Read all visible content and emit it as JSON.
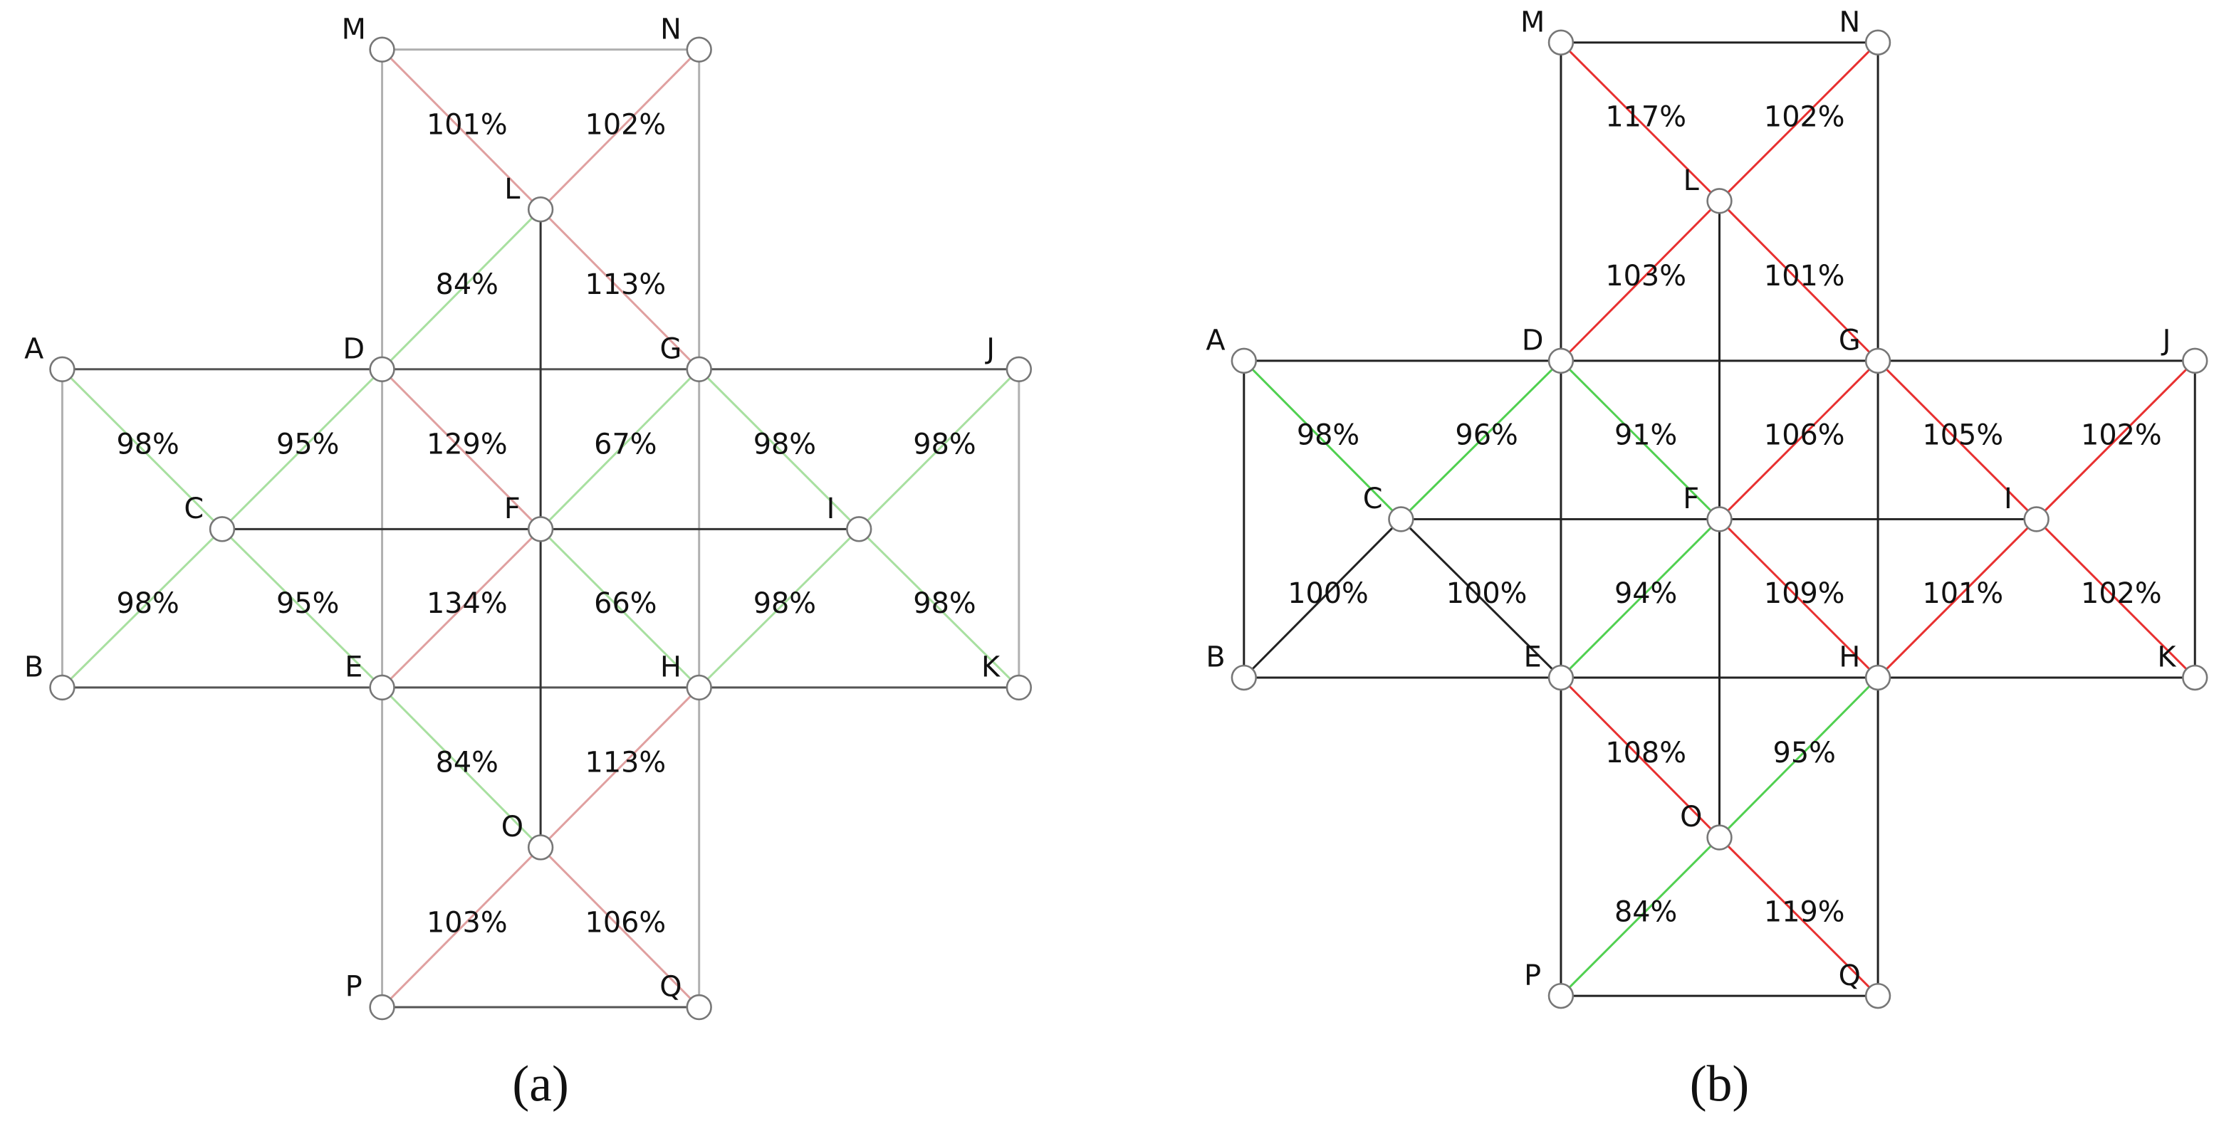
{
  "panels": [
    {
      "caption": "(a)",
      "nodes": [
        {
          "label": "M"
        },
        {
          "label": "N"
        },
        {
          "label": "L"
        },
        {
          "label": "A"
        },
        {
          "label": "D"
        },
        {
          "label": "G"
        },
        {
          "label": "J"
        },
        {
          "label": "C"
        },
        {
          "label": "F"
        },
        {
          "label": "I"
        },
        {
          "label": "B"
        },
        {
          "label": "E"
        },
        {
          "label": "H"
        },
        {
          "label": "K"
        },
        {
          "label": "O"
        },
        {
          "label": "P"
        },
        {
          "label": "Q"
        }
      ],
      "edges": [
        {
          "from": "M",
          "to": "N",
          "color": "#b0b0b0"
        },
        {
          "from": "M",
          "to": "P",
          "color": "#b0b0b0"
        },
        {
          "from": "N",
          "to": "Q",
          "color": "#b0b0b0"
        },
        {
          "from": "P",
          "to": "Q",
          "color": "#555555"
        },
        {
          "from": "A",
          "to": "J",
          "color": "#555555"
        },
        {
          "from": "B",
          "to": "K",
          "color": "#555555"
        },
        {
          "from": "A",
          "to": "B",
          "color": "#b0b0b0"
        },
        {
          "from": "J",
          "to": "K",
          "color": "#b0b0b0"
        },
        {
          "from": "C",
          "to": "I",
          "color": "#333333"
        },
        {
          "from": "L",
          "to": "O",
          "color": "#333333"
        },
        {
          "from": "M",
          "to": "L",
          "color": "#e0a0a0",
          "label": "101%"
        },
        {
          "from": "N",
          "to": "L",
          "color": "#e0a0a0",
          "label": "102%"
        },
        {
          "from": "L",
          "to": "D",
          "color": "#a8e0a0",
          "label": "84%"
        },
        {
          "from": "L",
          "to": "G",
          "color": "#e0a0a0",
          "label": "113%"
        },
        {
          "from": "A",
          "to": "C",
          "color": "#a8e0a0",
          "label": "98%"
        },
        {
          "from": "D",
          "to": "C",
          "color": "#a8e0a0",
          "label": "95%"
        },
        {
          "from": "D",
          "to": "F",
          "color": "#e0a0a0",
          "label": "129%"
        },
        {
          "from": "G",
          "to": "F",
          "color": "#a8e0a0",
          "label": "67%"
        },
        {
          "from": "G",
          "to": "I",
          "color": "#a8e0a0",
          "label": "98%"
        },
        {
          "from": "J",
          "to": "I",
          "color": "#a8e0a0",
          "label": "98%"
        },
        {
          "from": "C",
          "to": "B",
          "color": "#a8e0a0",
          "label": "98%"
        },
        {
          "from": "C",
          "to": "E",
          "color": "#a8e0a0",
          "label": "95%"
        },
        {
          "from": "F",
          "to": "E",
          "color": "#e0a0a0",
          "label": "134%"
        },
        {
          "from": "F",
          "to": "H",
          "color": "#a8e0a0",
          "label": "66%"
        },
        {
          "from": "I",
          "to": "H",
          "color": "#a8e0a0",
          "label": "98%"
        },
        {
          "from": "I",
          "to": "K",
          "color": "#a8e0a0",
          "label": "98%"
        },
        {
          "from": "E",
          "to": "O",
          "color": "#a8e0a0",
          "label": "84%"
        },
        {
          "from": "H",
          "to": "O",
          "color": "#e0a0a0",
          "label": "113%"
        },
        {
          "from": "O",
          "to": "P",
          "color": "#e0a0a0",
          "label": "103%"
        },
        {
          "from": "O",
          "to": "Q",
          "color": "#e0a0a0",
          "label": "106%"
        }
      ]
    },
    {
      "caption": "(b)",
      "nodes": [
        {
          "label": "M"
        },
        {
          "label": "N"
        },
        {
          "label": "L"
        },
        {
          "label": "A"
        },
        {
          "label": "D"
        },
        {
          "label": "G"
        },
        {
          "label": "J"
        },
        {
          "label": "C"
        },
        {
          "label": "F"
        },
        {
          "label": "I"
        },
        {
          "label": "B"
        },
        {
          "label": "E"
        },
        {
          "label": "H"
        },
        {
          "label": "K"
        },
        {
          "label": "O"
        },
        {
          "label": "P"
        },
        {
          "label": "Q"
        }
      ],
      "edges": [
        {
          "from": "M",
          "to": "N",
          "color": "#222222"
        },
        {
          "from": "M",
          "to": "P",
          "color": "#222222"
        },
        {
          "from": "N",
          "to": "Q",
          "color": "#222222"
        },
        {
          "from": "P",
          "to": "Q",
          "color": "#222222"
        },
        {
          "from": "A",
          "to": "J",
          "color": "#222222"
        },
        {
          "from": "B",
          "to": "K",
          "color": "#222222"
        },
        {
          "from": "A",
          "to": "B",
          "color": "#222222"
        },
        {
          "from": "J",
          "to": "K",
          "color": "#222222"
        },
        {
          "from": "C",
          "to": "I",
          "color": "#222222"
        },
        {
          "from": "L",
          "to": "O",
          "color": "#222222"
        },
        {
          "from": "M",
          "to": "L",
          "color": "#e83030",
          "label": "117%"
        },
        {
          "from": "N",
          "to": "L",
          "color": "#e83030",
          "label": "102%"
        },
        {
          "from": "D",
          "to": "L",
          "color": "#e83030",
          "label": "103%"
        },
        {
          "from": "L",
          "to": "G",
          "color": "#e83030",
          "label": "101%"
        },
        {
          "from": "A",
          "to": "C",
          "color": "#50d050",
          "label": "98%"
        },
        {
          "from": "C",
          "to": "D",
          "color": "#50d050",
          "label": "96%"
        },
        {
          "from": "D",
          "to": "F",
          "color": "#50d050",
          "label": "91%"
        },
        {
          "from": "F",
          "to": "G",
          "color": "#e83030",
          "label": "106%"
        },
        {
          "from": "G",
          "to": "I",
          "color": "#e83030",
          "label": "105%"
        },
        {
          "from": "I",
          "to": "J",
          "color": "#e83030",
          "label": "102%"
        },
        {
          "from": "C",
          "to": "B",
          "color": "#222222",
          "label": "100%"
        },
        {
          "from": "C",
          "to": "E",
          "color": "#222222",
          "label": "100%"
        },
        {
          "from": "E",
          "to": "F",
          "color": "#50d050",
          "label": "94%"
        },
        {
          "from": "F",
          "to": "H",
          "color": "#e83030",
          "label": "109%"
        },
        {
          "from": "H",
          "to": "I",
          "color": "#e83030",
          "label": "101%"
        },
        {
          "from": "I",
          "to": "K",
          "color": "#e83030",
          "label": "102%"
        },
        {
          "from": "E",
          "to": "O",
          "color": "#e83030",
          "label": "108%"
        },
        {
          "from": "O",
          "to": "H",
          "color": "#50d050",
          "label": "95%"
        },
        {
          "from": "P",
          "to": "O",
          "color": "#50d050",
          "label": "84%"
        },
        {
          "from": "O",
          "to": "Q",
          "color": "#e83030",
          "label": "119%"
        }
      ]
    }
  ]
}
